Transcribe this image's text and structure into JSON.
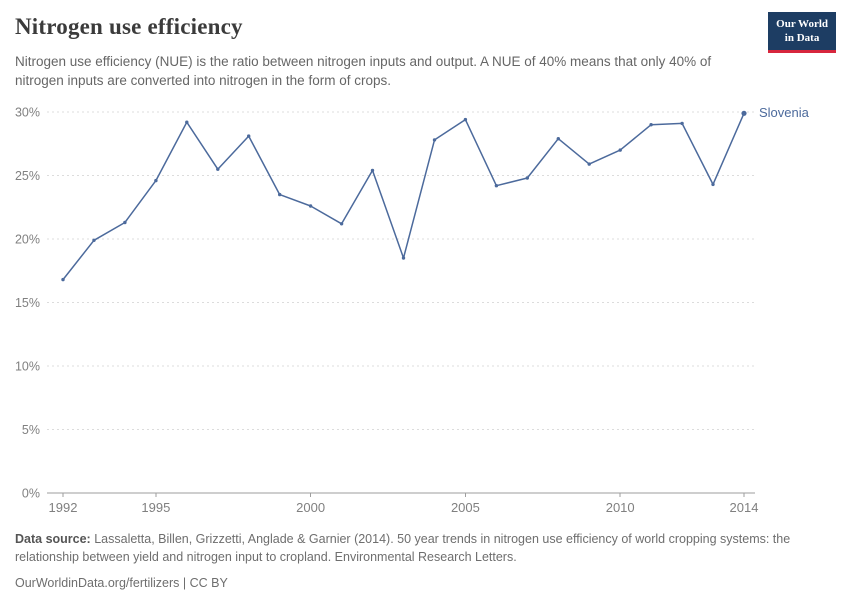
{
  "logo": {
    "line1": "Our World",
    "line2": "in Data"
  },
  "header": {
    "title": "Nitrogen use efficiency",
    "subtitle": "Nitrogen use efficiency (NUE) is the ratio between nitrogen inputs and output. A NUE of 40% means that only 40% of nitrogen inputs are converted into nitrogen in the form of crops."
  },
  "chart_data": {
    "type": "line",
    "title": "Nitrogen use efficiency",
    "x": [
      1992,
      1993,
      1994,
      1995,
      1996,
      1997,
      1998,
      1999,
      2000,
      2001,
      2002,
      2003,
      2004,
      2005,
      2006,
      2007,
      2008,
      2009,
      2010,
      2011,
      2012,
      2013,
      2014
    ],
    "series": [
      {
        "name": "Slovenia",
        "color": "#4C6A9C",
        "values": [
          16.8,
          19.9,
          21.3,
          24.6,
          29.2,
          25.5,
          28.1,
          23.5,
          22.6,
          21.2,
          25.4,
          18.5,
          27.8,
          29.4,
          24.2,
          24.8,
          27.9,
          25.9,
          27.0,
          29.0,
          29.1,
          24.3,
          29.9
        ]
      }
    ],
    "xlabel": "",
    "ylabel": "",
    "xlim": [
      1992,
      2014
    ],
    "ylim": [
      0,
      30
    ],
    "x_ticks": [
      1992,
      1995,
      2000,
      2005,
      2010,
      2014
    ],
    "y_ticks": [
      0,
      5,
      10,
      15,
      20,
      25,
      30
    ],
    "y_tick_suffix": "%",
    "grid": "horizontal-dashed",
    "legend_position": "end-of-line-right",
    "axis_color": "#9e9e9e",
    "gridline_color": "#dcdcdc",
    "tick_label_color": "#808080"
  },
  "footer": {
    "source_label": "Data source:",
    "source_text": "Lassaletta, Billen, Grizzetti, Anglade & Garnier (2014). 50 year trends in nitrogen use efficiency of world cropping systems: the relationship between yield and nitrogen input to cropland. Environmental Research Letters.",
    "link": "OurWorldinData.org/fertilizers | CC BY"
  }
}
